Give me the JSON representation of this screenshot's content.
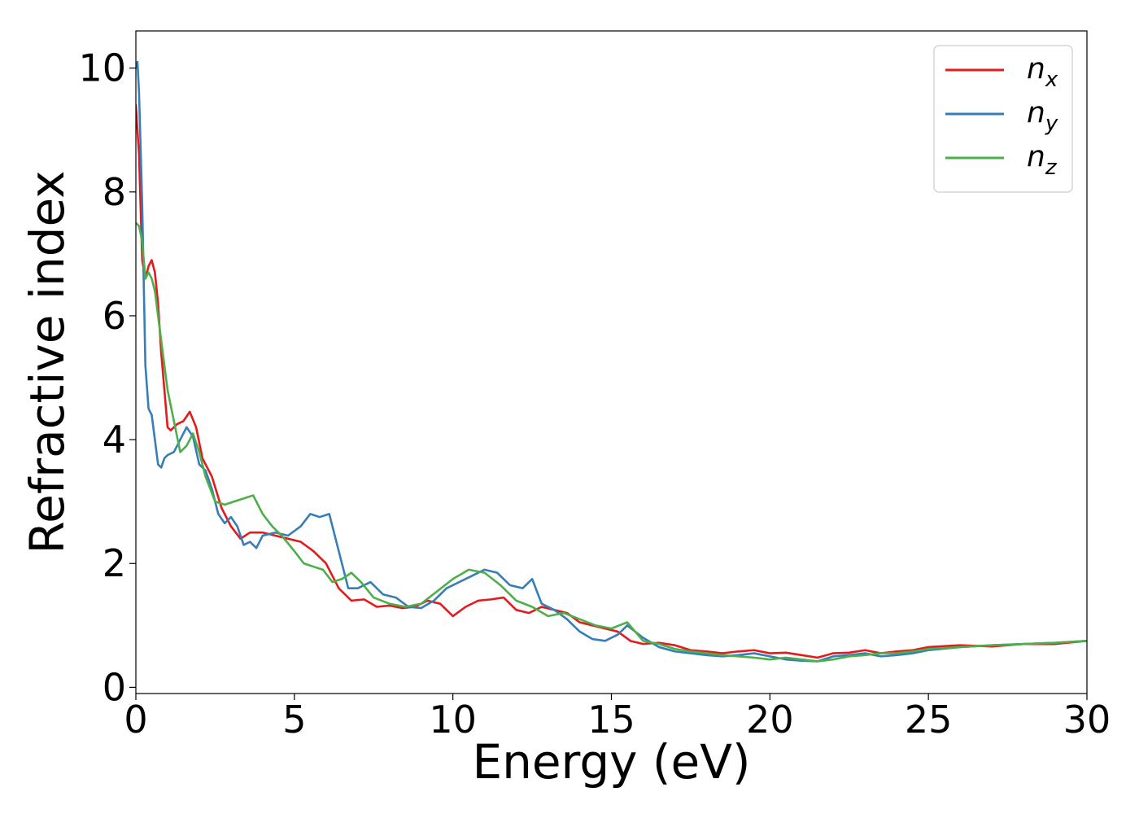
{
  "chart_data": {
    "type": "line",
    "xlabel": "Energy (eV)",
    "ylabel": "Refractive index",
    "xlim": [
      0,
      30
    ],
    "ylim": [
      -0.1,
      10.6
    ],
    "xticks": [
      0,
      5,
      10,
      15,
      20,
      25,
      30
    ],
    "yticks": [
      0,
      2,
      4,
      6,
      8,
      10
    ],
    "grid": false,
    "legend_position": "top-right",
    "series": [
      {
        "name": "n_x",
        "label_base": "n",
        "label_sub": "x",
        "color": "#e41a1c",
        "x": [
          0,
          0.1,
          0.2,
          0.3,
          0.4,
          0.5,
          0.6,
          0.7,
          0.8,
          0.9,
          1.0,
          1.1,
          1.3,
          1.5,
          1.7,
          1.9,
          2.1,
          2.4,
          2.7,
          3.0,
          3.3,
          3.6,
          4.0,
          4.4,
          4.8,
          5.2,
          5.6,
          6.0,
          6.4,
          6.8,
          7.2,
          7.6,
          8.0,
          8.4,
          8.8,
          9.2,
          9.6,
          10.0,
          10.4,
          10.8,
          11.2,
          11.6,
          12.0,
          12.4,
          12.8,
          13.2,
          13.6,
          14.0,
          14.4,
          14.8,
          15.2,
          15.6,
          16.0,
          16.5,
          17.0,
          17.5,
          18.0,
          18.5,
          19.0,
          19.5,
          20.0,
          20.5,
          21.0,
          21.5,
          22.0,
          22.5,
          23.0,
          23.5,
          24.0,
          24.5,
          25.0,
          26.0,
          27.0,
          28.0,
          29.0,
          30.0
        ],
        "y": [
          9.4,
          8.6,
          6.9,
          6.6,
          6.8,
          6.9,
          6.7,
          6.2,
          5.4,
          4.8,
          4.2,
          4.15,
          4.25,
          4.3,
          4.45,
          4.2,
          3.7,
          3.4,
          2.9,
          2.6,
          2.4,
          2.5,
          2.5,
          2.45,
          2.4,
          2.35,
          2.2,
          2.0,
          1.6,
          1.4,
          1.42,
          1.3,
          1.32,
          1.28,
          1.3,
          1.4,
          1.35,
          1.15,
          1.3,
          1.4,
          1.42,
          1.45,
          1.25,
          1.2,
          1.3,
          1.25,
          1.2,
          1.05,
          1.0,
          0.95,
          0.9,
          0.75,
          0.7,
          0.72,
          0.68,
          0.6,
          0.58,
          0.55,
          0.58,
          0.6,
          0.55,
          0.56,
          0.52,
          0.48,
          0.55,
          0.56,
          0.6,
          0.55,
          0.58,
          0.6,
          0.65,
          0.68,
          0.66,
          0.7,
          0.7,
          0.75
        ]
      },
      {
        "name": "n_y",
        "label_base": "n",
        "label_sub": "y",
        "color": "#377eb8",
        "x": [
          0,
          0.05,
          0.1,
          0.2,
          0.3,
          0.4,
          0.5,
          0.6,
          0.7,
          0.8,
          0.9,
          1.0,
          1.2,
          1.4,
          1.6,
          1.8,
          2.0,
          2.2,
          2.4,
          2.6,
          2.8,
          3.0,
          3.2,
          3.4,
          3.6,
          3.8,
          4.0,
          4.4,
          4.8,
          5.2,
          5.5,
          5.8,
          6.1,
          6.4,
          6.7,
          7.0,
          7.4,
          7.8,
          8.2,
          8.6,
          9.0,
          9.4,
          9.8,
          10.2,
          10.6,
          11.0,
          11.4,
          11.8,
          12.2,
          12.5,
          12.8,
          13.2,
          13.6,
          14.0,
          14.4,
          14.8,
          15.2,
          15.5,
          16.0,
          16.5,
          17.0,
          17.5,
          18.0,
          18.5,
          19.0,
          19.5,
          20.0,
          20.5,
          21.0,
          21.5,
          22.0,
          22.5,
          23.0,
          23.5,
          24.0,
          24.5,
          25.0,
          26.0,
          27.0,
          28.0,
          29.0,
          30.0
        ],
        "y": [
          10.0,
          10.1,
          9.6,
          7.8,
          5.2,
          4.5,
          4.4,
          4.0,
          3.6,
          3.55,
          3.7,
          3.75,
          3.8,
          4.0,
          4.2,
          4.05,
          3.6,
          3.5,
          3.2,
          2.8,
          2.65,
          2.75,
          2.6,
          2.3,
          2.35,
          2.25,
          2.45,
          2.5,
          2.45,
          2.6,
          2.8,
          2.75,
          2.8,
          2.2,
          1.6,
          1.6,
          1.7,
          1.5,
          1.45,
          1.3,
          1.28,
          1.4,
          1.6,
          1.7,
          1.8,
          1.9,
          1.85,
          1.65,
          1.6,
          1.75,
          1.35,
          1.25,
          1.1,
          0.9,
          0.78,
          0.75,
          0.85,
          1.0,
          0.8,
          0.65,
          0.58,
          0.55,
          0.52,
          0.5,
          0.52,
          0.55,
          0.5,
          0.45,
          0.43,
          0.42,
          0.5,
          0.52,
          0.55,
          0.5,
          0.52,
          0.55,
          0.6,
          0.65,
          0.68,
          0.7,
          0.72,
          0.75
        ]
      },
      {
        "name": "n_z",
        "label_base": "n",
        "label_sub": "z",
        "color": "#4daf4a",
        "x": [
          0,
          0.1,
          0.2,
          0.3,
          0.4,
          0.5,
          0.6,
          0.8,
          1.0,
          1.2,
          1.4,
          1.6,
          1.8,
          2.0,
          2.2,
          2.5,
          2.8,
          3.1,
          3.4,
          3.7,
          4.0,
          4.3,
          4.6,
          5.0,
          5.3,
          5.6,
          5.9,
          6.2,
          6.5,
          6.8,
          7.1,
          7.5,
          8.0,
          8.5,
          9.0,
          9.5,
          10.0,
          10.5,
          11.0,
          11.5,
          12.0,
          12.5,
          13.0,
          13.5,
          14.0,
          14.5,
          15.0,
          15.5,
          16.0,
          16.5,
          17.0,
          17.5,
          18.0,
          18.5,
          19.0,
          19.5,
          20.0,
          20.5,
          21.0,
          21.5,
          22.0,
          22.5,
          23.0,
          23.5,
          24.0,
          24.5,
          25.0,
          26.0,
          27.0,
          28.0,
          29.0,
          30.0
        ],
        "y": [
          7.5,
          7.45,
          7.2,
          6.6,
          6.7,
          6.6,
          6.4,
          5.6,
          4.8,
          4.3,
          3.8,
          3.9,
          4.1,
          3.8,
          3.4,
          3.0,
          2.95,
          3.0,
          3.05,
          3.1,
          2.8,
          2.6,
          2.45,
          2.2,
          2.0,
          1.95,
          1.9,
          1.7,
          1.75,
          1.85,
          1.7,
          1.45,
          1.35,
          1.3,
          1.35,
          1.55,
          1.75,
          1.9,
          1.85,
          1.65,
          1.4,
          1.3,
          1.15,
          1.2,
          1.1,
          1.0,
          0.95,
          1.05,
          0.75,
          0.7,
          0.62,
          0.58,
          0.55,
          0.52,
          0.5,
          0.48,
          0.45,
          0.48,
          0.45,
          0.42,
          0.45,
          0.5,
          0.52,
          0.55,
          0.55,
          0.58,
          0.62,
          0.65,
          0.68,
          0.7,
          0.72,
          0.75
        ]
      }
    ]
  }
}
